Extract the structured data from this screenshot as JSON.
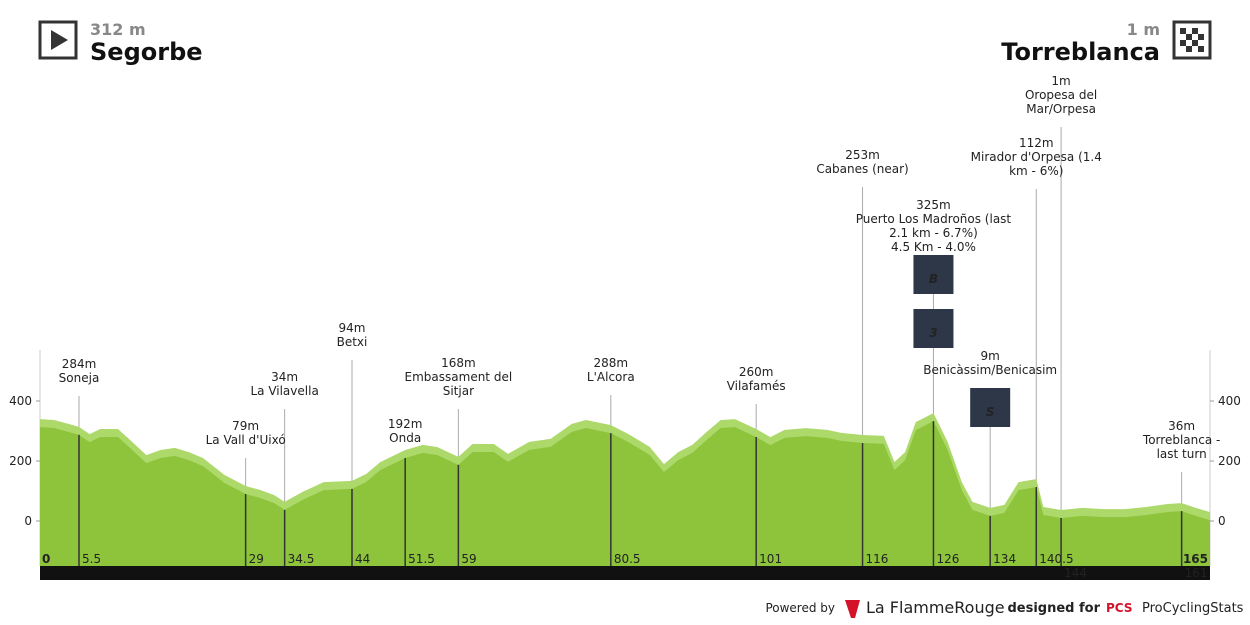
{
  "header": {
    "start_elevation": "312 m",
    "start_name": "Segorbe",
    "finish_elevation": "1 m",
    "finish_name": "Torreblanca"
  },
  "chart_data": {
    "type": "area",
    "color": "#8dc43c",
    "highlight_color": "#acd96a",
    "x": [
      0,
      2,
      4,
      5.5,
      7,
      8.5,
      11,
      13,
      15,
      17,
      19,
      21,
      23,
      26,
      29,
      31,
      33,
      34.5,
      37,
      40,
      44,
      46,
      48,
      51.5,
      54,
      56,
      59,
      61,
      64,
      66,
      69,
      72,
      75,
      77,
      80.5,
      83,
      86,
      88,
      90,
      92,
      94,
      96,
      98,
      101,
      103,
      105,
      108,
      111,
      113,
      116,
      119,
      120.5,
      122,
      123.5,
      126,
      128,
      130,
      131.5,
      134,
      136,
      138,
      140.5,
      141.5,
      144,
      147,
      150,
      153,
      156,
      159,
      161,
      163,
      165
    ],
    "values": [
      313,
      310,
      297,
      287,
      263,
      280,
      280,
      237,
      193,
      210,
      217,
      203,
      183,
      127,
      90,
      77,
      60,
      37,
      70,
      103,
      107,
      130,
      170,
      210,
      227,
      220,
      187,
      230,
      230,
      197,
      237,
      247,
      297,
      310,
      293,
      263,
      220,
      163,
      203,
      227,
      270,
      310,
      313,
      280,
      253,
      277,
      283,
      277,
      267,
      260,
      257,
      170,
      203,
      303,
      333,
      237,
      103,
      37,
      17,
      27,
      103,
      113,
      20,
      10,
      17,
      13,
      13,
      20,
      30,
      33,
      17,
      3
    ],
    "xlim": [
      0,
      165
    ],
    "ylim": [
      -150,
      570
    ],
    "yticks": [
      0,
      200,
      400
    ],
    "km_start": 0,
    "km_finish": 165,
    "waypoints": [
      {
        "km": 5.5,
        "elevation": "284m",
        "name": [
          "Soneja"
        ]
      },
      {
        "km": 29,
        "elevation": "79m",
        "name": [
          "La Vall d'Uixó"
        ]
      },
      {
        "km": 34.5,
        "elevation": "34m",
        "name": [
          "La Vilavella"
        ]
      },
      {
        "km": 44,
        "elevation": "94m",
        "name": [
          "Betxi"
        ]
      },
      {
        "km": 51.5,
        "elevation": "192m",
        "name": [
          "Onda"
        ]
      },
      {
        "km": 59,
        "elevation": "168m",
        "name": [
          "Embassament del",
          "Sitjar"
        ]
      },
      {
        "km": 80.5,
        "elevation": "288m",
        "name": [
          "L'Alcora"
        ]
      },
      {
        "km": 101,
        "elevation": "260m",
        "name": [
          "Vilafamés"
        ]
      },
      {
        "km": 116,
        "elevation": "253m",
        "name": [
          "Cabanes (near)"
        ]
      },
      {
        "km": 126,
        "elevation": "325m",
        "name": [
          "Puerto Los Madroños (last",
          "2.1 km - 6.7%)",
          "4.5 Km - 4.0%"
        ],
        "icons": [
          "B",
          "3"
        ]
      },
      {
        "km": 134,
        "elevation": "9m",
        "name": [
          "Benicàssim/Benicasim"
        ],
        "icons": [
          "S"
        ]
      },
      {
        "km": 140.5,
        "elevation": "112m",
        "name": [
          "Mirador d'Orpesa (1.4",
          "km - 6%)"
        ]
      },
      {
        "km": 144,
        "elevation": "1m",
        "name": [
          "Oropesa del",
          "Mar/Orpesa"
        ]
      },
      {
        "km": 161,
        "elevation": "36m",
        "name": [
          "Torreblanca -",
          "last turn"
        ]
      }
    ]
  },
  "footer": {
    "powered_by": "Powered by",
    "brand": "La FlammeRouge",
    "designed_for": "designed for",
    "pcs": "PCS",
    "pcs_name": "ProCyclingStats"
  }
}
